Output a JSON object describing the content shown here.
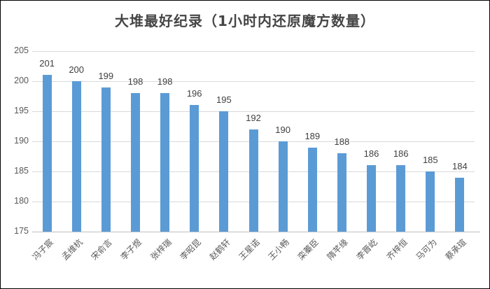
{
  "window": {
    "background": "#ffffff",
    "border_color": "#000000"
  },
  "chart_data": {
    "type": "bar",
    "title": "大堆最好纪录（1小时内还原魔方数量）",
    "categories": [
      "冯子宸",
      "孟维杭",
      "宋俞言",
      "李子煜",
      "张梓瑞",
      "李昭昆",
      "赵鹤轩",
      "王星诺",
      "王小畅",
      "栾蓁臣",
      "隋芊缘",
      "李晋屹",
      "齐梓恒",
      "马可为",
      "蔡承瑄"
    ],
    "values": [
      201,
      200,
      199,
      198,
      198,
      196,
      195,
      192,
      190,
      189,
      188,
      186,
      186,
      185,
      184
    ],
    "data_labels_shown": true,
    "xlabel": "",
    "ylabel": "",
    "ylim": [
      175,
      205
    ],
    "yticks": [
      175,
      180,
      185,
      190,
      195,
      200,
      205
    ],
    "grid": true,
    "legend": "none",
    "bar_color": "#5b9bd5",
    "gridline_color": "#d9d9d9",
    "axis_line_color": "#bfbfbf",
    "tick_label_color": "#595959",
    "value_label_color": "#404040",
    "title_color": "#454545"
  }
}
